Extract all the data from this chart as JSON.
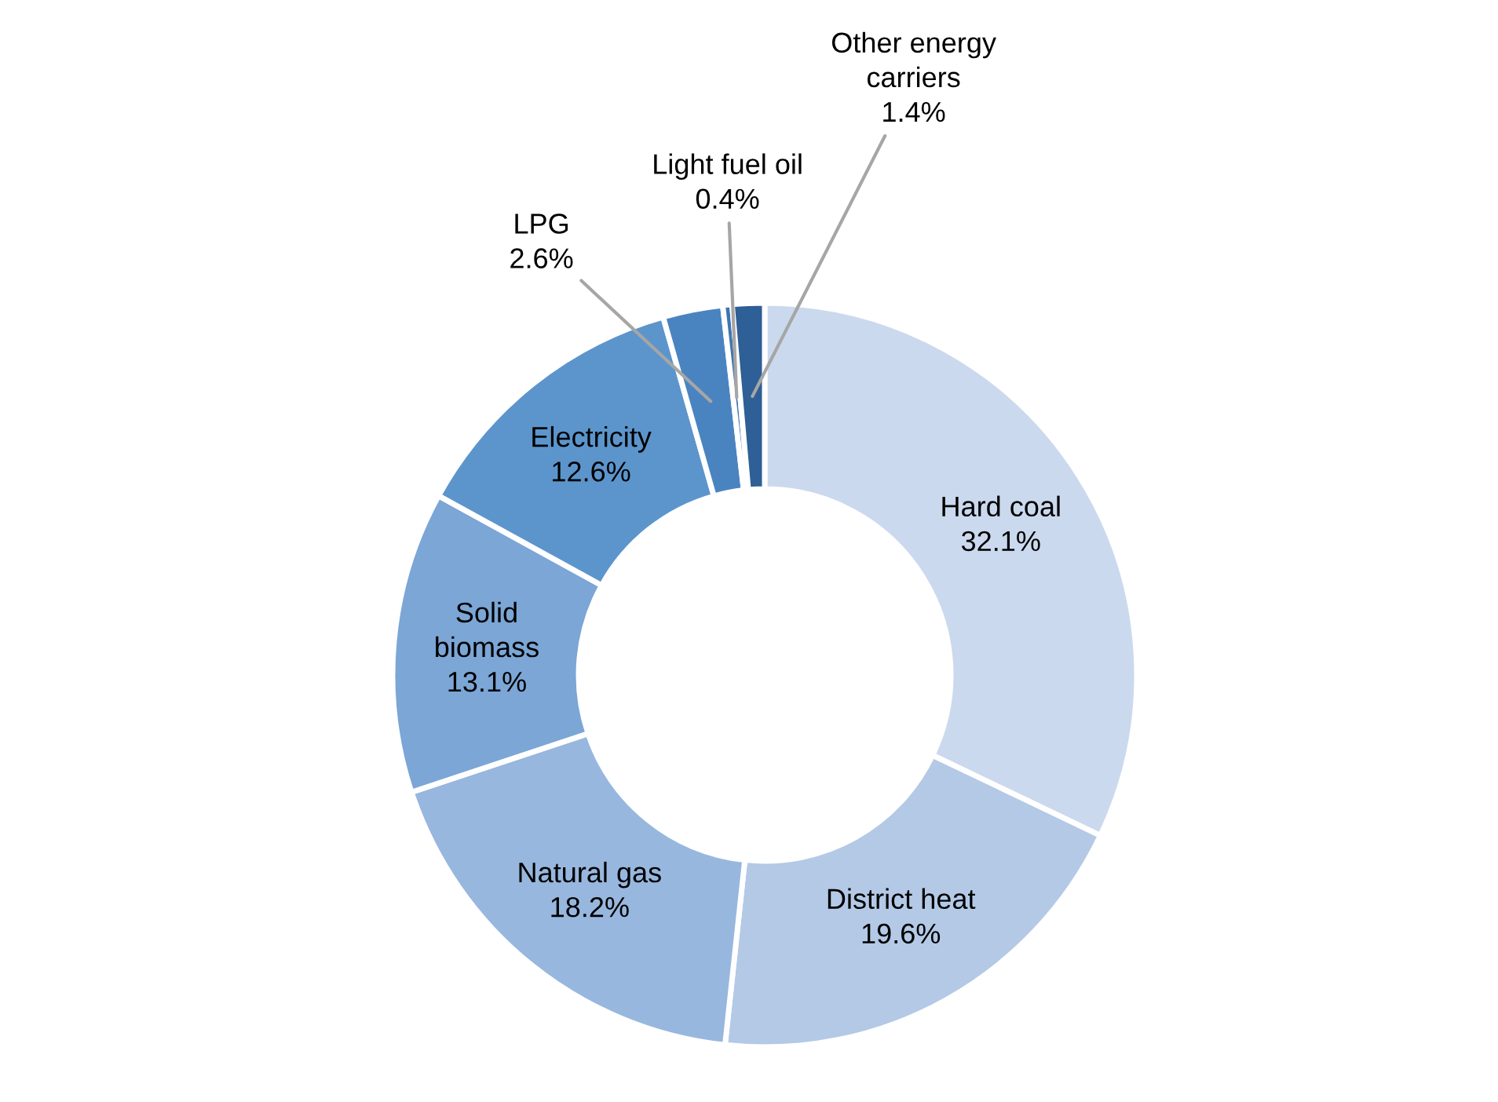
{
  "chart_data": {
    "type": "donut",
    "categories": [
      "Hard coal",
      "District heat",
      "Natural gas",
      "Solid biomass",
      "Electricity",
      "LPG",
      "Light fuel oil",
      "Other energy carriers"
    ],
    "values": [
      32.1,
      19.6,
      18.2,
      13.1,
      12.6,
      2.6,
      0.4,
      1.4
    ],
    "value_labels": [
      "32.1%",
      "19.6%",
      "18.2%",
      "13.1%",
      "12.6%",
      "2.6%",
      "0.4%",
      "1.4%"
    ],
    "colors": [
      "#cbd9ee",
      "#b3c9e6",
      "#98b7de",
      "#7ba6d6",
      "#5c95cc",
      "#4a84c0",
      "#3f76b0",
      "#2e5f96"
    ],
    "legend": false
  }
}
